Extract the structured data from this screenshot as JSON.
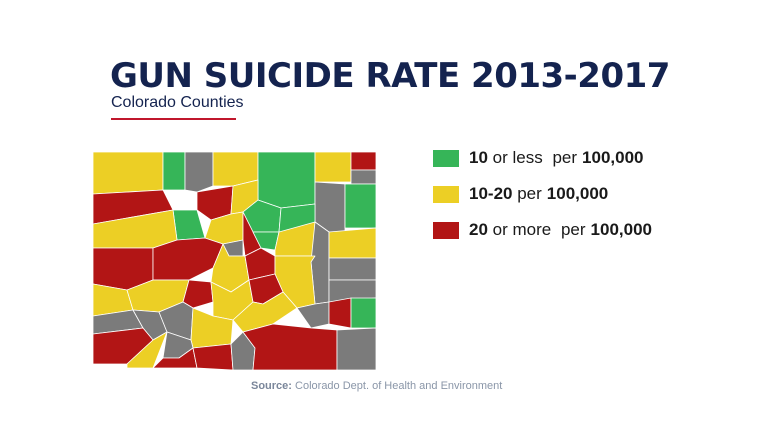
{
  "title": "GUN SUICIDE RATE 2013-2017",
  "subtitle": "Colorado Counties",
  "colors": {
    "green": "#36b558",
    "yellow": "#eccf25",
    "red": "#b21515",
    "gray": "#7b7b7b",
    "title": "#14234f",
    "accent": "#c0172c"
  },
  "legend": [
    {
      "range": "10",
      "qualifier": "or less",
      "unit_prefix": "per",
      "unit": "100,000",
      "color": "green"
    },
    {
      "range": "10-20",
      "qualifier": "",
      "unit_prefix": "per",
      "unit": "100,000",
      "color": "yellow"
    },
    {
      "range": "20",
      "qualifier": "or more",
      "unit_prefix": "per",
      "unit": "100,000",
      "color": "red"
    }
  ],
  "source": {
    "label": "Source:",
    "text": "Colorado Dept. of Health and Environment"
  }
}
